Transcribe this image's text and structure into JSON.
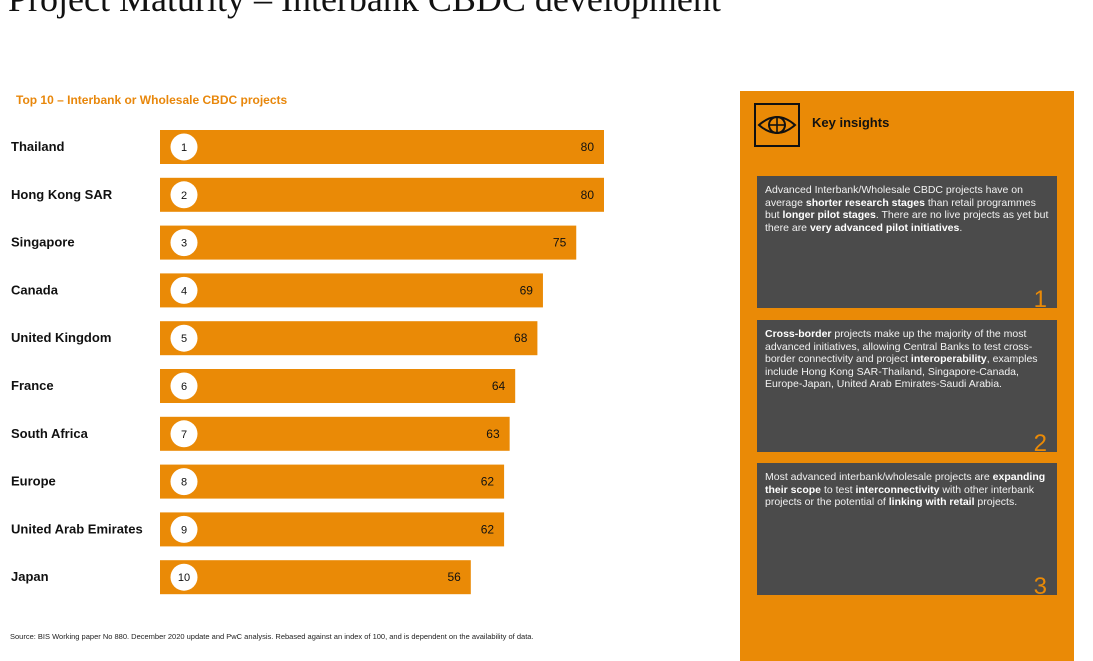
{
  "page": {
    "title": "Project Maturity – Interbank CBDC development",
    "subtitle": "Top 10 – Interbank or Wholesale CBDC projects",
    "source": "Source: BIS Working paper No 880. December 2020 update and PwC analysis. Rebased against an index of 100, and is dependent on the availability of data."
  },
  "colors": {
    "accent": "#ea8a06",
    "bar": "#ea8a06",
    "panel_box": "#4b4b4b"
  },
  "chart_data": {
    "type": "bar",
    "orientation": "horizontal",
    "title": "Top 10 – Interbank or Wholesale CBDC projects",
    "categories": [
      "Thailand",
      "Hong Kong SAR",
      "Singapore",
      "Canada",
      "United Kingdom",
      "France",
      "South Africa",
      "Europe",
      "United Arab Emirates",
      "Japan"
    ],
    "ranks": [
      "1",
      "2",
      "3",
      "4",
      "5",
      "6",
      "7",
      "8",
      "9",
      "10"
    ],
    "values": [
      80,
      80,
      75,
      69,
      68,
      64,
      63,
      62,
      62,
      56
    ],
    "xlim": [
      0,
      100
    ],
    "grid": false,
    "legend": "none"
  },
  "insights": {
    "heading": "Key insights",
    "icon": "eye-globe-icon",
    "items": [
      {
        "number": "1",
        "parts": [
          {
            "t": "Advanced Interbank/Wholesale CBDC projects have on average "
          },
          {
            "t": "shorter research stages",
            "b": true
          },
          {
            "t": " than retail programmes but "
          },
          {
            "t": "longer pilot stages",
            "b": true
          },
          {
            "t": ". There are no live projects as yet but there are "
          },
          {
            "t": "very advanced pilot initiatives",
            "b": true
          },
          {
            "t": "."
          }
        ]
      },
      {
        "number": "2",
        "parts": [
          {
            "t": "Cross-border",
            "b": true
          },
          {
            "t": " projects make up the majority of the most advanced initiatives, allowing Central Banks to test cross-border connectivity and project "
          },
          {
            "t": "interoperability",
            "b": true
          },
          {
            "t": ", examples include Hong Kong SAR-Thailand, Singapore-Canada, Europe-Japan, United Arab Emirates-Saudi Arabia."
          }
        ]
      },
      {
        "number": "3",
        "parts": [
          {
            "t": "Most advanced interbank/wholesale projects are "
          },
          {
            "t": "expanding their scope",
            "b": true
          },
          {
            "t": " to test "
          },
          {
            "t": "interconnectivity",
            "b": true
          },
          {
            "t": " with other interbank projects or the potential of "
          },
          {
            "t": "linking with retail",
            "b": true
          },
          {
            "t": " projects."
          }
        ]
      }
    ]
  }
}
